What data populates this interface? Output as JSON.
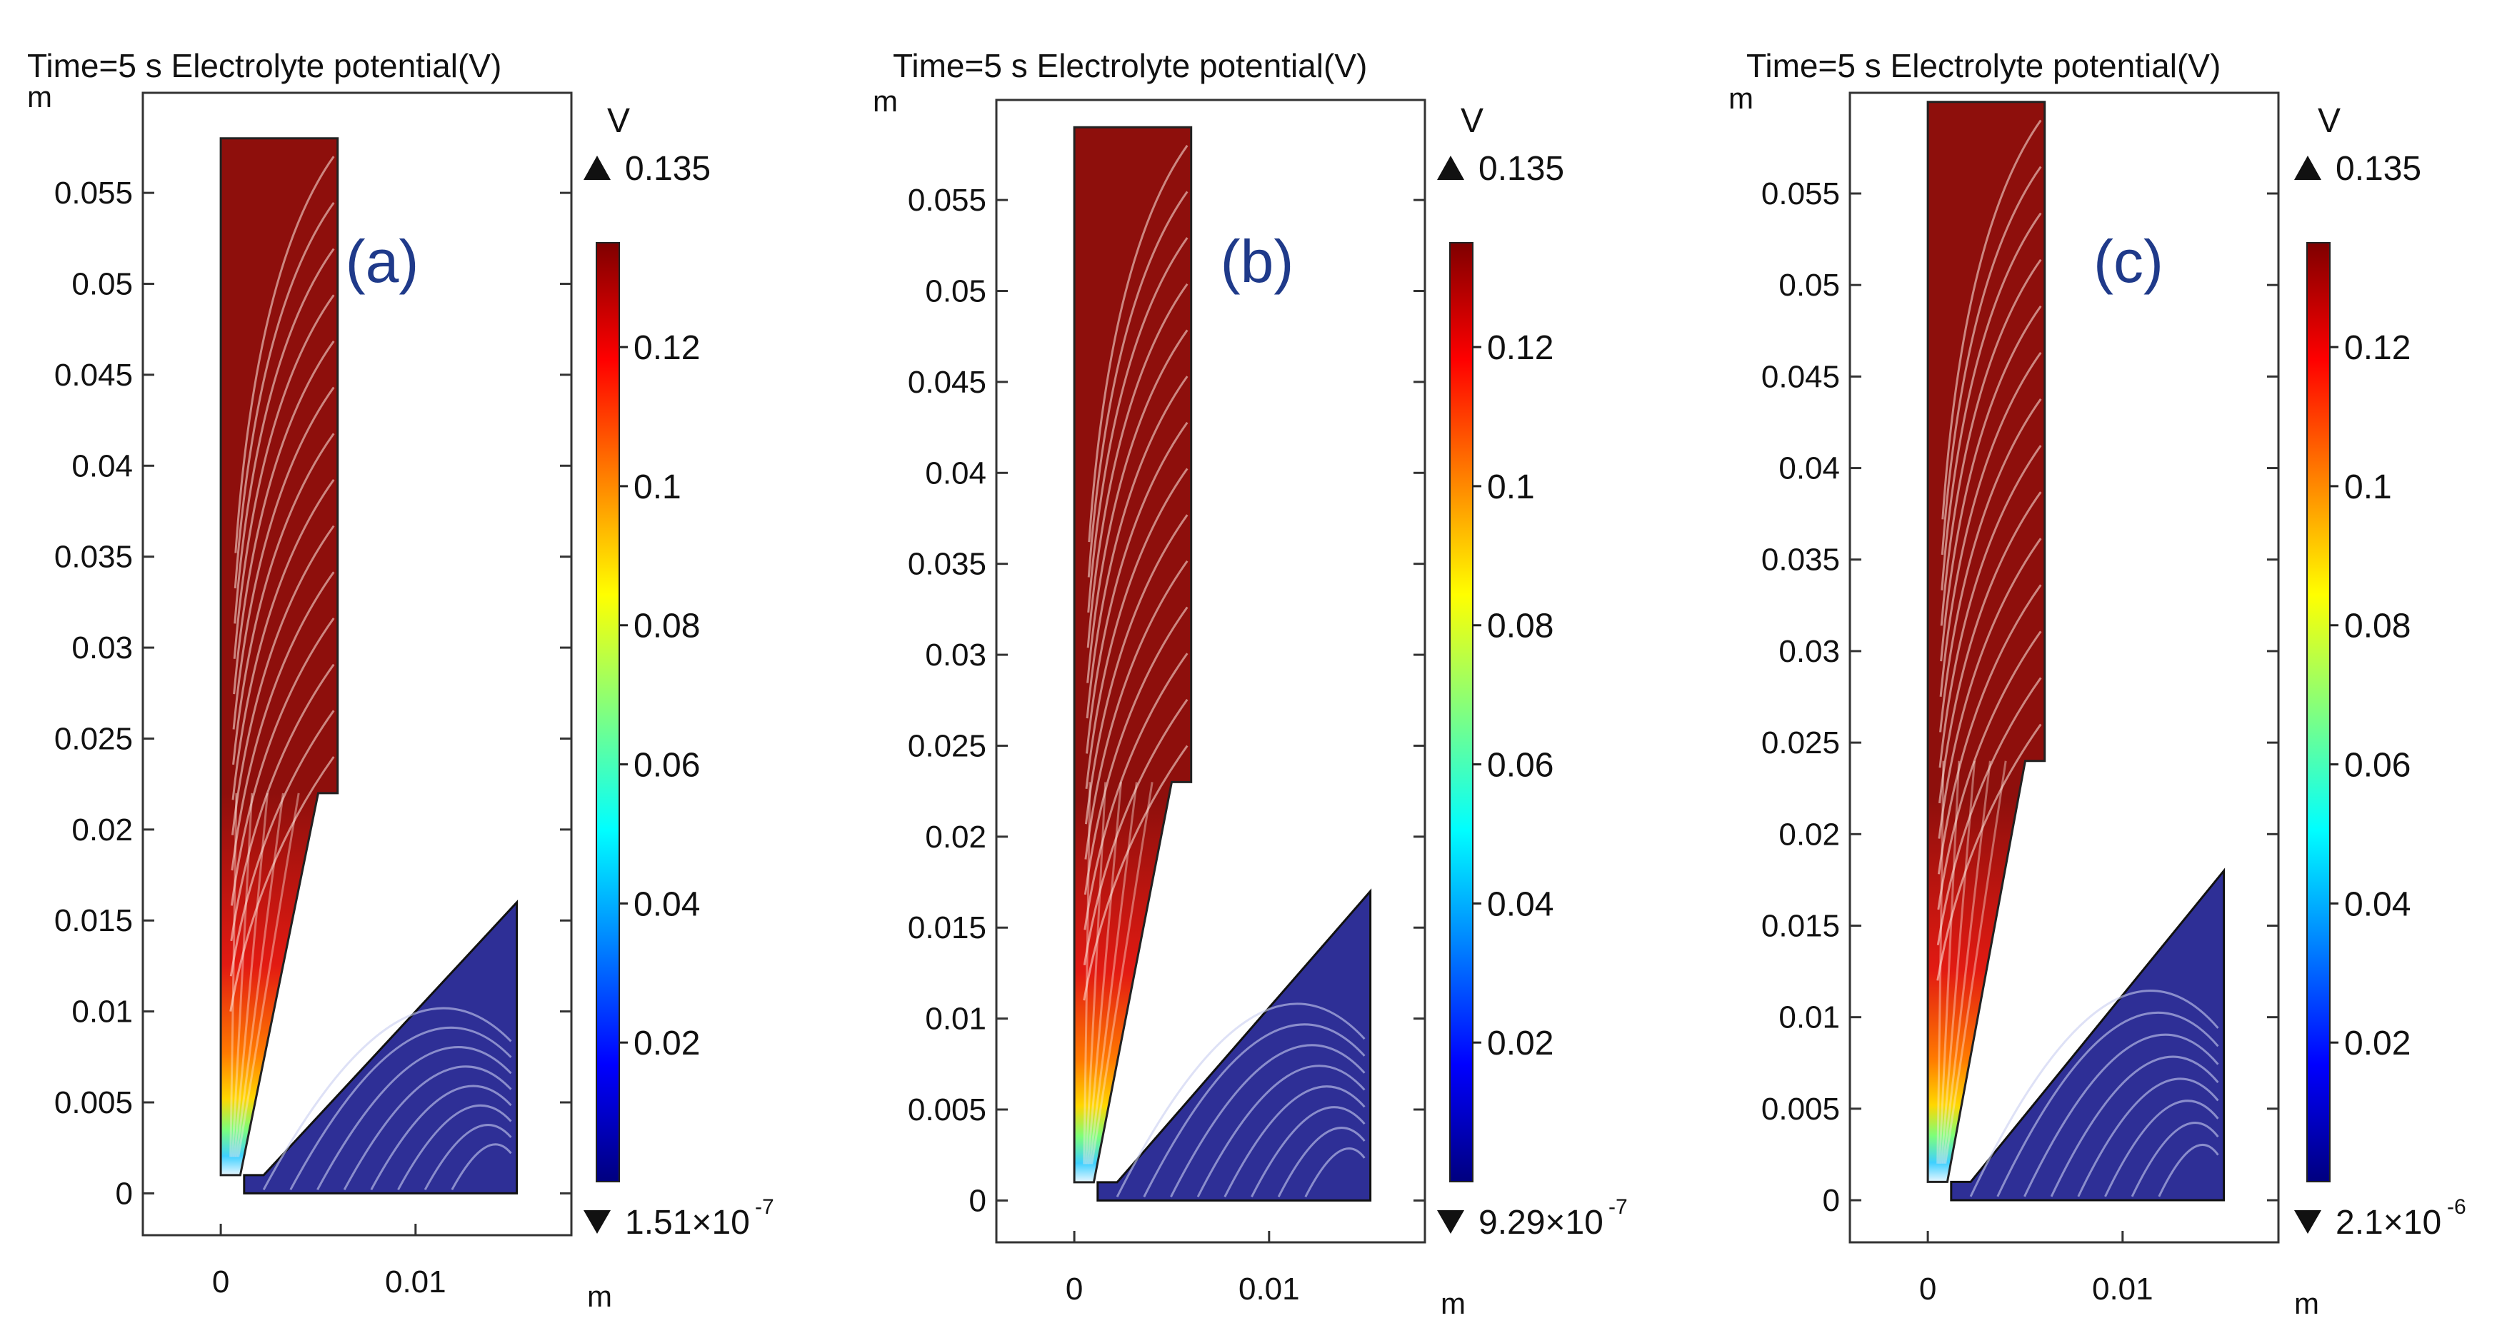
{
  "chart_data": [
    {
      "type": "heatmap",
      "panel_label": "(a)",
      "title": "Time=5 s Electrolyte potential(V)",
      "xlabel": "m",
      "ylabel": "m",
      "xlim": [
        -0.004,
        0.018
      ],
      "ylim": [
        -0.0023,
        0.0605
      ],
      "x_ticks": [
        0,
        0.01
      ],
      "x_tick_labels": [
        "0",
        "0.01"
      ],
      "y_ticks": [
        0,
        0.005,
        0.01,
        0.015,
        0.02,
        0.025,
        0.03,
        0.035,
        0.04,
        0.045,
        0.05,
        0.055
      ],
      "y_tick_labels": [
        "0",
        "0.005",
        "0.01",
        "0.015",
        "0.02",
        "0.025",
        "0.03",
        "0.035",
        "0.04",
        "0.045",
        "0.05",
        "0.055"
      ],
      "geometry": {
        "upper_electrode": [
          [
            0,
            0.058
          ],
          [
            0.006,
            0.058
          ],
          [
            0.006,
            0.022
          ],
          [
            0.005,
            0.022
          ],
          [
            0.001,
            0.001
          ],
          [
            0,
            0.001
          ]
        ],
        "lower_electrode": [
          [
            0.0012,
            0
          ],
          [
            0.0152,
            0
          ],
          [
            0.0152,
            0.016
          ],
          [
            0.0022,
            0.001
          ],
          [
            0.0012,
            0.001
          ]
        ]
      },
      "colorbar": {
        "unit": "V",
        "max": 0.135,
        "max_label": "0.135",
        "min": 1.51e-07,
        "min_label": "1.51×10",
        "min_exp": "-7",
        "ticks": [
          0.12,
          0.1,
          0.08,
          0.06,
          0.04,
          0.02
        ],
        "tick_labels": [
          "0.12",
          "0.1",
          "0.08",
          "0.06",
          "0.04",
          "0.02"
        ],
        "colormap": [
          "#00007f",
          "#0000ff",
          "#0080ff",
          "#00ffff",
          "#80ff80",
          "#ffff00",
          "#ff8000",
          "#ff0000",
          "#7f0000"
        ]
      }
    },
    {
      "type": "heatmap",
      "panel_label": "(b)",
      "title": "Time=5 s Electrolyte potential(V)",
      "xlabel": "m",
      "ylabel": "m",
      "xlim": [
        -0.004,
        0.018
      ],
      "ylim": [
        -0.0023,
        0.0605
      ],
      "x_ticks": [
        0,
        0.01
      ],
      "x_tick_labels": [
        "0",
        "0.01"
      ],
      "y_ticks": [
        0,
        0.005,
        0.01,
        0.015,
        0.02,
        0.025,
        0.03,
        0.035,
        0.04,
        0.045,
        0.05,
        0.055
      ],
      "y_tick_labels": [
        "0",
        "0.005",
        "0.01",
        "0.015",
        "0.02",
        "0.025",
        "0.03",
        "0.035",
        "0.04",
        "0.045",
        "0.05",
        "0.055"
      ],
      "geometry": {
        "upper_electrode": [
          [
            0,
            0.059
          ],
          [
            0.006,
            0.059
          ],
          [
            0.006,
            0.023
          ],
          [
            0.005,
            0.023
          ],
          [
            0.001,
            0.001
          ],
          [
            0,
            0.001
          ]
        ],
        "lower_electrode": [
          [
            0.0012,
            0
          ],
          [
            0.0152,
            0
          ],
          [
            0.0152,
            0.017
          ],
          [
            0.0022,
            0.001
          ],
          [
            0.0012,
            0.001
          ]
        ]
      },
      "colorbar": {
        "unit": "V",
        "max": 0.135,
        "max_label": "0.135",
        "min": 9.29e-07,
        "min_label": "9.29×10",
        "min_exp": "-7",
        "ticks": [
          0.12,
          0.1,
          0.08,
          0.06,
          0.04,
          0.02
        ],
        "tick_labels": [
          "0.12",
          "0.1",
          "0.08",
          "0.06",
          "0.04",
          "0.02"
        ],
        "colormap": [
          "#00007f",
          "#0000ff",
          "#0080ff",
          "#00ffff",
          "#80ff80",
          "#ffff00",
          "#ff8000",
          "#ff0000",
          "#7f0000"
        ]
      }
    },
    {
      "type": "heatmap",
      "panel_label": "(c)",
      "title": "Time=5 s Electrolyte potential(V)",
      "xlabel": "m",
      "ylabel": "m",
      "xlim": [
        -0.004,
        0.018
      ],
      "ylim": [
        -0.0023,
        0.0605
      ],
      "x_ticks": [
        0,
        0.01
      ],
      "x_tick_labels": [
        "0",
        "0.01"
      ],
      "y_ticks": [
        0,
        0.005,
        0.01,
        0.015,
        0.02,
        0.025,
        0.03,
        0.035,
        0.04,
        0.045,
        0.05,
        0.055
      ],
      "y_tick_labels": [
        "0",
        "0.005",
        "0.01",
        "0.015",
        "0.02",
        "0.025",
        "0.03",
        "0.035",
        "0.04",
        "0.045",
        "0.05",
        "0.055"
      ],
      "geometry": {
        "upper_electrode": [
          [
            0,
            0.06
          ],
          [
            0.006,
            0.06
          ],
          [
            0.006,
            0.024
          ],
          [
            0.005,
            0.024
          ],
          [
            0.001,
            0.001
          ],
          [
            0,
            0.001
          ]
        ],
        "lower_electrode": [
          [
            0.0012,
            0
          ],
          [
            0.0152,
            0
          ],
          [
            0.0152,
            0.018
          ],
          [
            0.0022,
            0.001
          ],
          [
            0.0012,
            0.001
          ]
        ]
      },
      "colorbar": {
        "unit": "V",
        "max": 0.135,
        "max_label": "0.135",
        "min": 2.1e-06,
        "min_label": "2.1×10",
        "min_exp": "-6",
        "ticks": [
          0.12,
          0.1,
          0.08,
          0.06,
          0.04,
          0.02
        ],
        "tick_labels": [
          "0.12",
          "0.1",
          "0.08",
          "0.06",
          "0.04",
          "0.02"
        ],
        "colormap": [
          "#00007f",
          "#0000ff",
          "#0080ff",
          "#00ffff",
          "#80ff80",
          "#ffff00",
          "#ff8000",
          "#ff0000",
          "#7f0000"
        ]
      }
    }
  ]
}
